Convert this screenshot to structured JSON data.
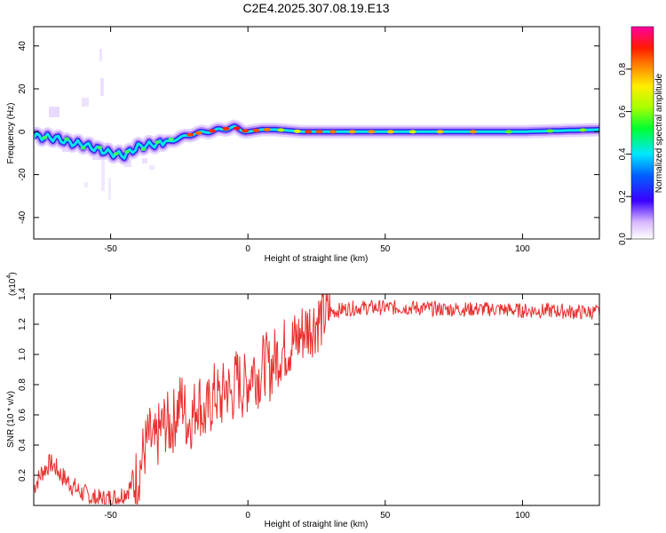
{
  "title": "C2E4.2025.307.08.19.E13",
  "chart_data": [
    {
      "type": "heatmap",
      "xlabel": "Height of straight line (km)",
      "ylabel": "Frequency (Hz)",
      "xlim": [
        -78,
        128
      ],
      "ylim": [
        -50,
        49
      ],
      "xticks": [
        -50,
        0,
        50,
        100
      ],
      "yticks": [
        -40,
        -20,
        0,
        20,
        40
      ],
      "grid": false,
      "ridge": {
        "x": [
          -78,
          -70,
          -65,
          -60,
          -55,
          -50,
          -45,
          -40,
          -35,
          -30,
          -25,
          -20,
          -15,
          -10,
          -5,
          0,
          5,
          10,
          20,
          30,
          50,
          80,
          100,
          128
        ],
        "freq": [
          -2,
          -3,
          -5,
          -6,
          -8,
          -10,
          -11,
          -7,
          -6,
          -5,
          -3,
          -1,
          0,
          1,
          2,
          0,
          1,
          1,
          0,
          0,
          0,
          0,
          0,
          1
        ]
      },
      "colorbar": {
        "label": "Normalized spectral amplitude",
        "range": [
          0.0,
          1.0
        ],
        "ticks": [
          "0.0",
          "0.2",
          "0.4",
          "0.6",
          "0.8"
        ]
      }
    },
    {
      "type": "line",
      "xlabel": "Height of straight line (km)",
      "ylabel": "SNR (10 * v/v)",
      "yscale_label": "(x10",
      "yscale_exp": "4",
      "xlim": [
        -78,
        128
      ],
      "ylim": [
        0.0,
        1.4
      ],
      "xticks": [
        -50,
        0,
        50,
        100
      ],
      "yticks": [
        "0.2",
        "0.4",
        "0.6",
        "0.8",
        "1.0",
        "1.2",
        "1.4"
      ],
      "grid": false,
      "color": "#e8312f",
      "series": [
        {
          "x": [
            -78,
            -75,
            -72,
            -70,
            -68,
            -65,
            -62,
            -60,
            -58,
            -55,
            -52,
            -50,
            -48,
            -46,
            -44,
            -42,
            -40,
            -38,
            -36,
            -34,
            -32,
            -30,
            -28,
            -26,
            -24,
            -22,
            -20,
            -18,
            -16,
            -14,
            -12,
            -10,
            -8,
            -6,
            -4,
            -2,
            0,
            2,
            4,
            6,
            8,
            10,
            12,
            15,
            18,
            20,
            22,
            25,
            28,
            30,
            35,
            40,
            50,
            60,
            70,
            80,
            90,
            100,
            110,
            120,
            128
          ],
          "y": [
            0.12,
            0.22,
            0.28,
            0.25,
            0.2,
            0.15,
            0.1,
            0.08,
            0.06,
            0.04,
            0.04,
            0.05,
            0.05,
            0.07,
            0.1,
            0.14,
            0.2,
            0.35,
            0.45,
            0.38,
            0.5,
            0.55,
            0.52,
            0.62,
            0.7,
            0.55,
            0.6,
            0.72,
            0.58,
            0.65,
            0.75,
            0.68,
            0.8,
            0.72,
            0.85,
            0.78,
            0.82,
            0.92,
            0.85,
            0.95,
            0.9,
            0.98,
            1.02,
            1.06,
            1.1,
            1.15,
            1.18,
            1.22,
            1.26,
            1.28,
            1.3,
            1.31,
            1.31,
            1.31,
            1.3,
            1.3,
            1.3,
            1.29,
            1.29,
            1.28,
            1.28
          ]
        }
      ]
    }
  ]
}
